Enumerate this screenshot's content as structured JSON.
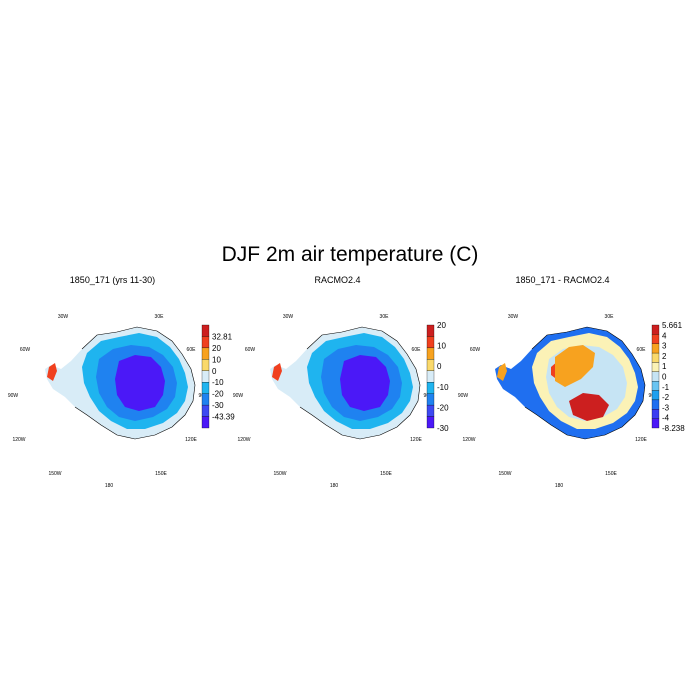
{
  "figure": {
    "title": "DJF 2m air temperature (C)"
  },
  "lon_labels": [
    "30W",
    "30E",
    "60W",
    "60E",
    "90W",
    "90E",
    "120W",
    "120E",
    "150W",
    "150E",
    "180"
  ],
  "panels": [
    {
      "title": "1850_171 (yrs 11-30)",
      "colorbar": {
        "colors": [
          "#cc1f1f",
          "#f0401f",
          "#f7a21f",
          "#fad96b",
          "#d8ecf7",
          "#1fb4ef",
          "#1f82f0",
          "#3d49f2",
          "#4b18f7"
        ],
        "labels": [
          "32.81",
          "20",
          "10",
          "0",
          "-10",
          "-20",
          "-30",
          "-43.39"
        ]
      },
      "field": [
        {
          "type": "outer",
          "color": "#d8ecf7"
        },
        {
          "type": "ice",
          "color": "#1fb4ef"
        },
        {
          "type": "mid",
          "color": "#1f82f0"
        },
        {
          "type": "core",
          "color": "#4b18f7"
        }
      ]
    },
    {
      "title": "RACMO2.4",
      "colorbar": {
        "colors": [
          "#cc1f1f",
          "#f0401f",
          "#f7a21f",
          "#fad96b",
          "#d8ecf7",
          "#1fb4ef",
          "#1f82f0",
          "#3d49f2",
          "#4b18f7"
        ],
        "labels": [
          "20",
          "10",
          "0",
          "-10",
          "-20",
          "-30"
        ]
      },
      "field": [
        {
          "type": "outer",
          "color": "#d8ecf7"
        },
        {
          "type": "ice",
          "color": "#1fb4ef"
        },
        {
          "type": "mid",
          "color": "#1f82f0"
        },
        {
          "type": "core",
          "color": "#4b18f7"
        }
      ]
    },
    {
      "title": "1850_171 - RACMO2.4",
      "colorbar": {
        "colors": [
          "#cc1f1f",
          "#f0401f",
          "#f7a21f",
          "#fad96b",
          "#fbf2b6",
          "#c6e4f4",
          "#69c4f2",
          "#1fa0ef",
          "#1f6ff0",
          "#3a3cf2",
          "#4b18f7"
        ],
        "labels": [
          "5.661",
          "4",
          "3",
          "2",
          "1",
          "0",
          "-1",
          "-2",
          "-3",
          "-4",
          "-8.238"
        ]
      },
      "field": [
        {
          "type": "outer",
          "color": "#1f6ff0"
        },
        {
          "type": "ice",
          "color": "#fbf2b6"
        },
        {
          "type": "mid",
          "color": "#c6e4f4"
        },
        {
          "type": "warm1",
          "color": "#f0401f"
        },
        {
          "type": "warm2",
          "color": "#cc1f1f"
        },
        {
          "type": "warm3",
          "color": "#f7a21f"
        }
      ]
    }
  ]
}
